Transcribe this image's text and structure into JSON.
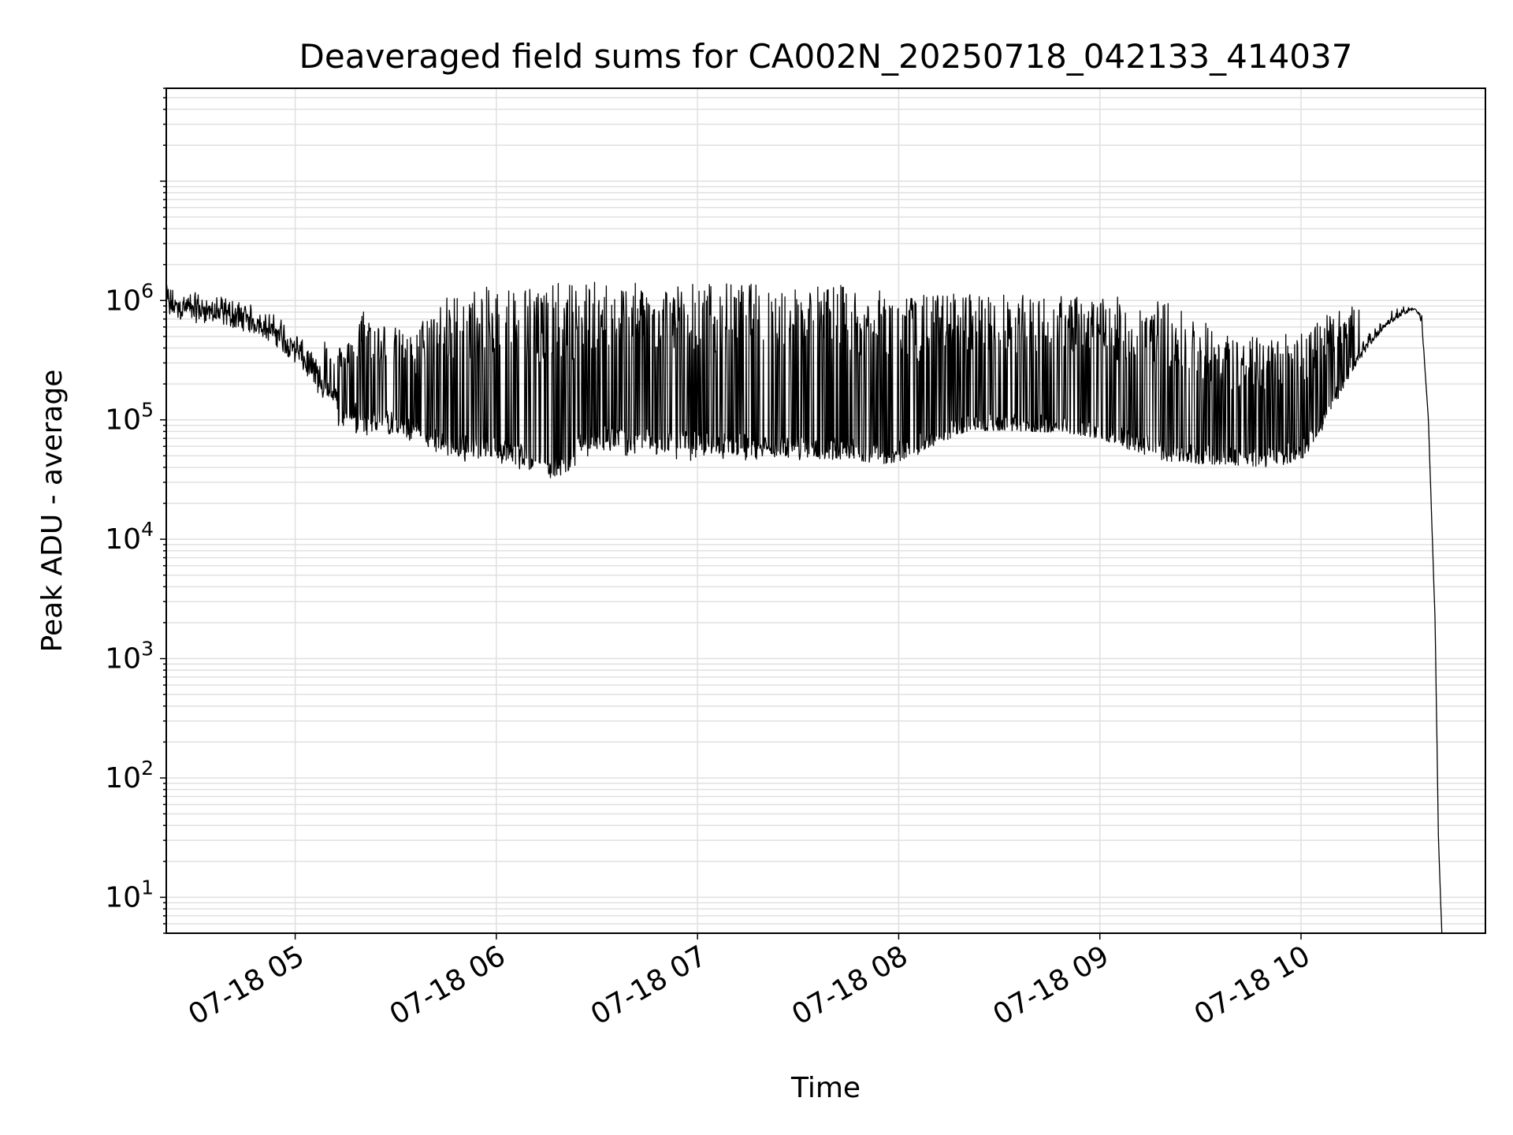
{
  "chart_data": {
    "type": "line",
    "title": "Deaveraged field sums for CA002N_20250718_042133_414037",
    "xlabel": "Time",
    "ylabel": "Peak ADU - average",
    "yscale": "log",
    "ylim": [
      5,
      60000000
    ],
    "xlim": [
      "2025-07-18T04:21:33",
      "2025-07-18T10:55:00"
    ],
    "grid": true,
    "x_ticks": [
      {
        "at": "2025-07-18T05:00",
        "label": "07-18 05"
      },
      {
        "at": "2025-07-18T06:00",
        "label": "07-18 06"
      },
      {
        "at": "2025-07-18T07:00",
        "label": "07-18 07"
      },
      {
        "at": "2025-07-18T08:00",
        "label": "07-18 08"
      },
      {
        "at": "2025-07-18T09:00",
        "label": "07-18 09"
      },
      {
        "at": "2025-07-18T10:00",
        "label": "07-18 10"
      }
    ],
    "y_ticks": [
      {
        "value": 10,
        "base": "10",
        "exp": "1"
      },
      {
        "value": 100,
        "base": "10",
        "exp": "2"
      },
      {
        "value": 1000,
        "base": "10",
        "exp": "3"
      },
      {
        "value": 10000,
        "base": "10",
        "exp": "4"
      },
      {
        "value": 100000,
        "base": "10",
        "exp": "5"
      },
      {
        "value": 1000000,
        "base": "10",
        "exp": "6"
      }
    ],
    "line_color": "#000000",
    "grid_color": "#e0e0e0",
    "series": [
      {
        "x": [
          "2025-07-18T04:21:33",
          "2025-07-18T04:25",
          "2025-07-18T04:30",
          "2025-07-18T04:35",
          "2025-07-18T04:40",
          "2025-07-18T04:45",
          "2025-07-18T04:50",
          "2025-07-18T04:55",
          "2025-07-18T05:00",
          "2025-07-18T05:05",
          "2025-07-18T05:10",
          "2025-07-18T05:15",
          "2025-07-18T05:20",
          "2025-07-18T05:25",
          "2025-07-18T05:30",
          "2025-07-18T05:35",
          "2025-07-18T05:40",
          "2025-07-18T05:45",
          "2025-07-18T05:50",
          "2025-07-18T05:55",
          "2025-07-18T06:00",
          "2025-07-18T06:05",
          "2025-07-18T06:10",
          "2025-07-18T06:15",
          "2025-07-18T06:20",
          "2025-07-18T06:25",
          "2025-07-18T06:30",
          "2025-07-18T06:40",
          "2025-07-18T06:50",
          "2025-07-18T07:00",
          "2025-07-18T07:15",
          "2025-07-18T07:30",
          "2025-07-18T07:45",
          "2025-07-18T07:50",
          "2025-07-18T07:55",
          "2025-07-18T08:00",
          "2025-07-18T08:05",
          "2025-07-18T08:10",
          "2025-07-18T08:20",
          "2025-07-18T08:30",
          "2025-07-18T08:40",
          "2025-07-18T08:50",
          "2025-07-18T09:00",
          "2025-07-18T09:10",
          "2025-07-18T09:20",
          "2025-07-18T09:30",
          "2025-07-18T09:40",
          "2025-07-18T09:50",
          "2025-07-18T10:00",
          "2025-07-18T10:05",
          "2025-07-18T10:10",
          "2025-07-18T10:15",
          "2025-07-18T10:20",
          "2025-07-18T10:25",
          "2025-07-18T10:30",
          "2025-07-18T10:34",
          "2025-07-18T10:36",
          "2025-07-18T10:38",
          "2025-07-18T10:40",
          "2025-07-18T10:41",
          "2025-07-18T10:42"
        ],
        "base": [
          1100000,
          1000000,
          950000,
          900000,
          850000,
          780000,
          700000,
          600000,
          450000,
          300000,
          180000,
          130000,
          110000,
          100000,
          95000,
          90000,
          75000,
          65000,
          62000,
          60000,
          58000,
          55000,
          50000,
          45000,
          38000,
          65000,
          75000,
          70000,
          68000,
          65000,
          62000,
          60000,
          58000,
          55000,
          52000,
          55000,
          60000,
          70000,
          90000,
          92000,
          90000,
          88000,
          80000,
          65000,
          55000,
          50000,
          50000,
          48000,
          55000,
          80000,
          150000,
          280000,
          450000,
          650000,
          800000,
          900000,
          700000,
          100000,
          2000,
          30,
          5
        ],
        "spike_max": [
          1600000,
          1400000,
          1500000,
          1300000,
          1200000,
          1000000,
          1000000,
          900000,
          700000,
          600000,
          500000,
          400000,
          900000,
          700000,
          600000,
          500000,
          900000,
          1100000,
          1200000,
          1300000,
          1300000,
          1400000,
          1400000,
          1400000,
          1400000,
          1450000,
          1450000,
          1400000,
          1400000,
          1450000,
          1400000,
          1400000,
          1350000,
          1300000,
          1200000,
          1200000,
          1100000,
          1150000,
          1200000,
          1150000,
          1100000,
          1100000,
          1100000,
          1050000,
          1000000,
          700000,
          500000,
          500000,
          600000,
          700000,
          800000,
          900000,
          950000,
          900000,
          900000,
          850000,
          750000,
          100000,
          2000,
          30,
          5
        ],
        "spike_min": [
          700000,
          700000,
          650000,
          650000,
          600000,
          550000,
          500000,
          400000,
          300000,
          200000,
          100000,
          80000,
          75000,
          70000,
          70000,
          65000,
          55000,
          50000,
          45000,
          42000,
          45000,
          40000,
          35000,
          32000,
          35000,
          45000,
          50000,
          50000,
          48000,
          45000,
          45000,
          45000,
          45000,
          45000,
          42000,
          45000,
          50000,
          60000,
          80000,
          82000,
          80000,
          78000,
          70000,
          55000,
          45000,
          43000,
          42000,
          40000,
          45000,
          70000,
          130000,
          250000,
          400000,
          600000,
          750000,
          850000,
          650000,
          100000,
          2000,
          30,
          5
        ]
      }
    ]
  }
}
